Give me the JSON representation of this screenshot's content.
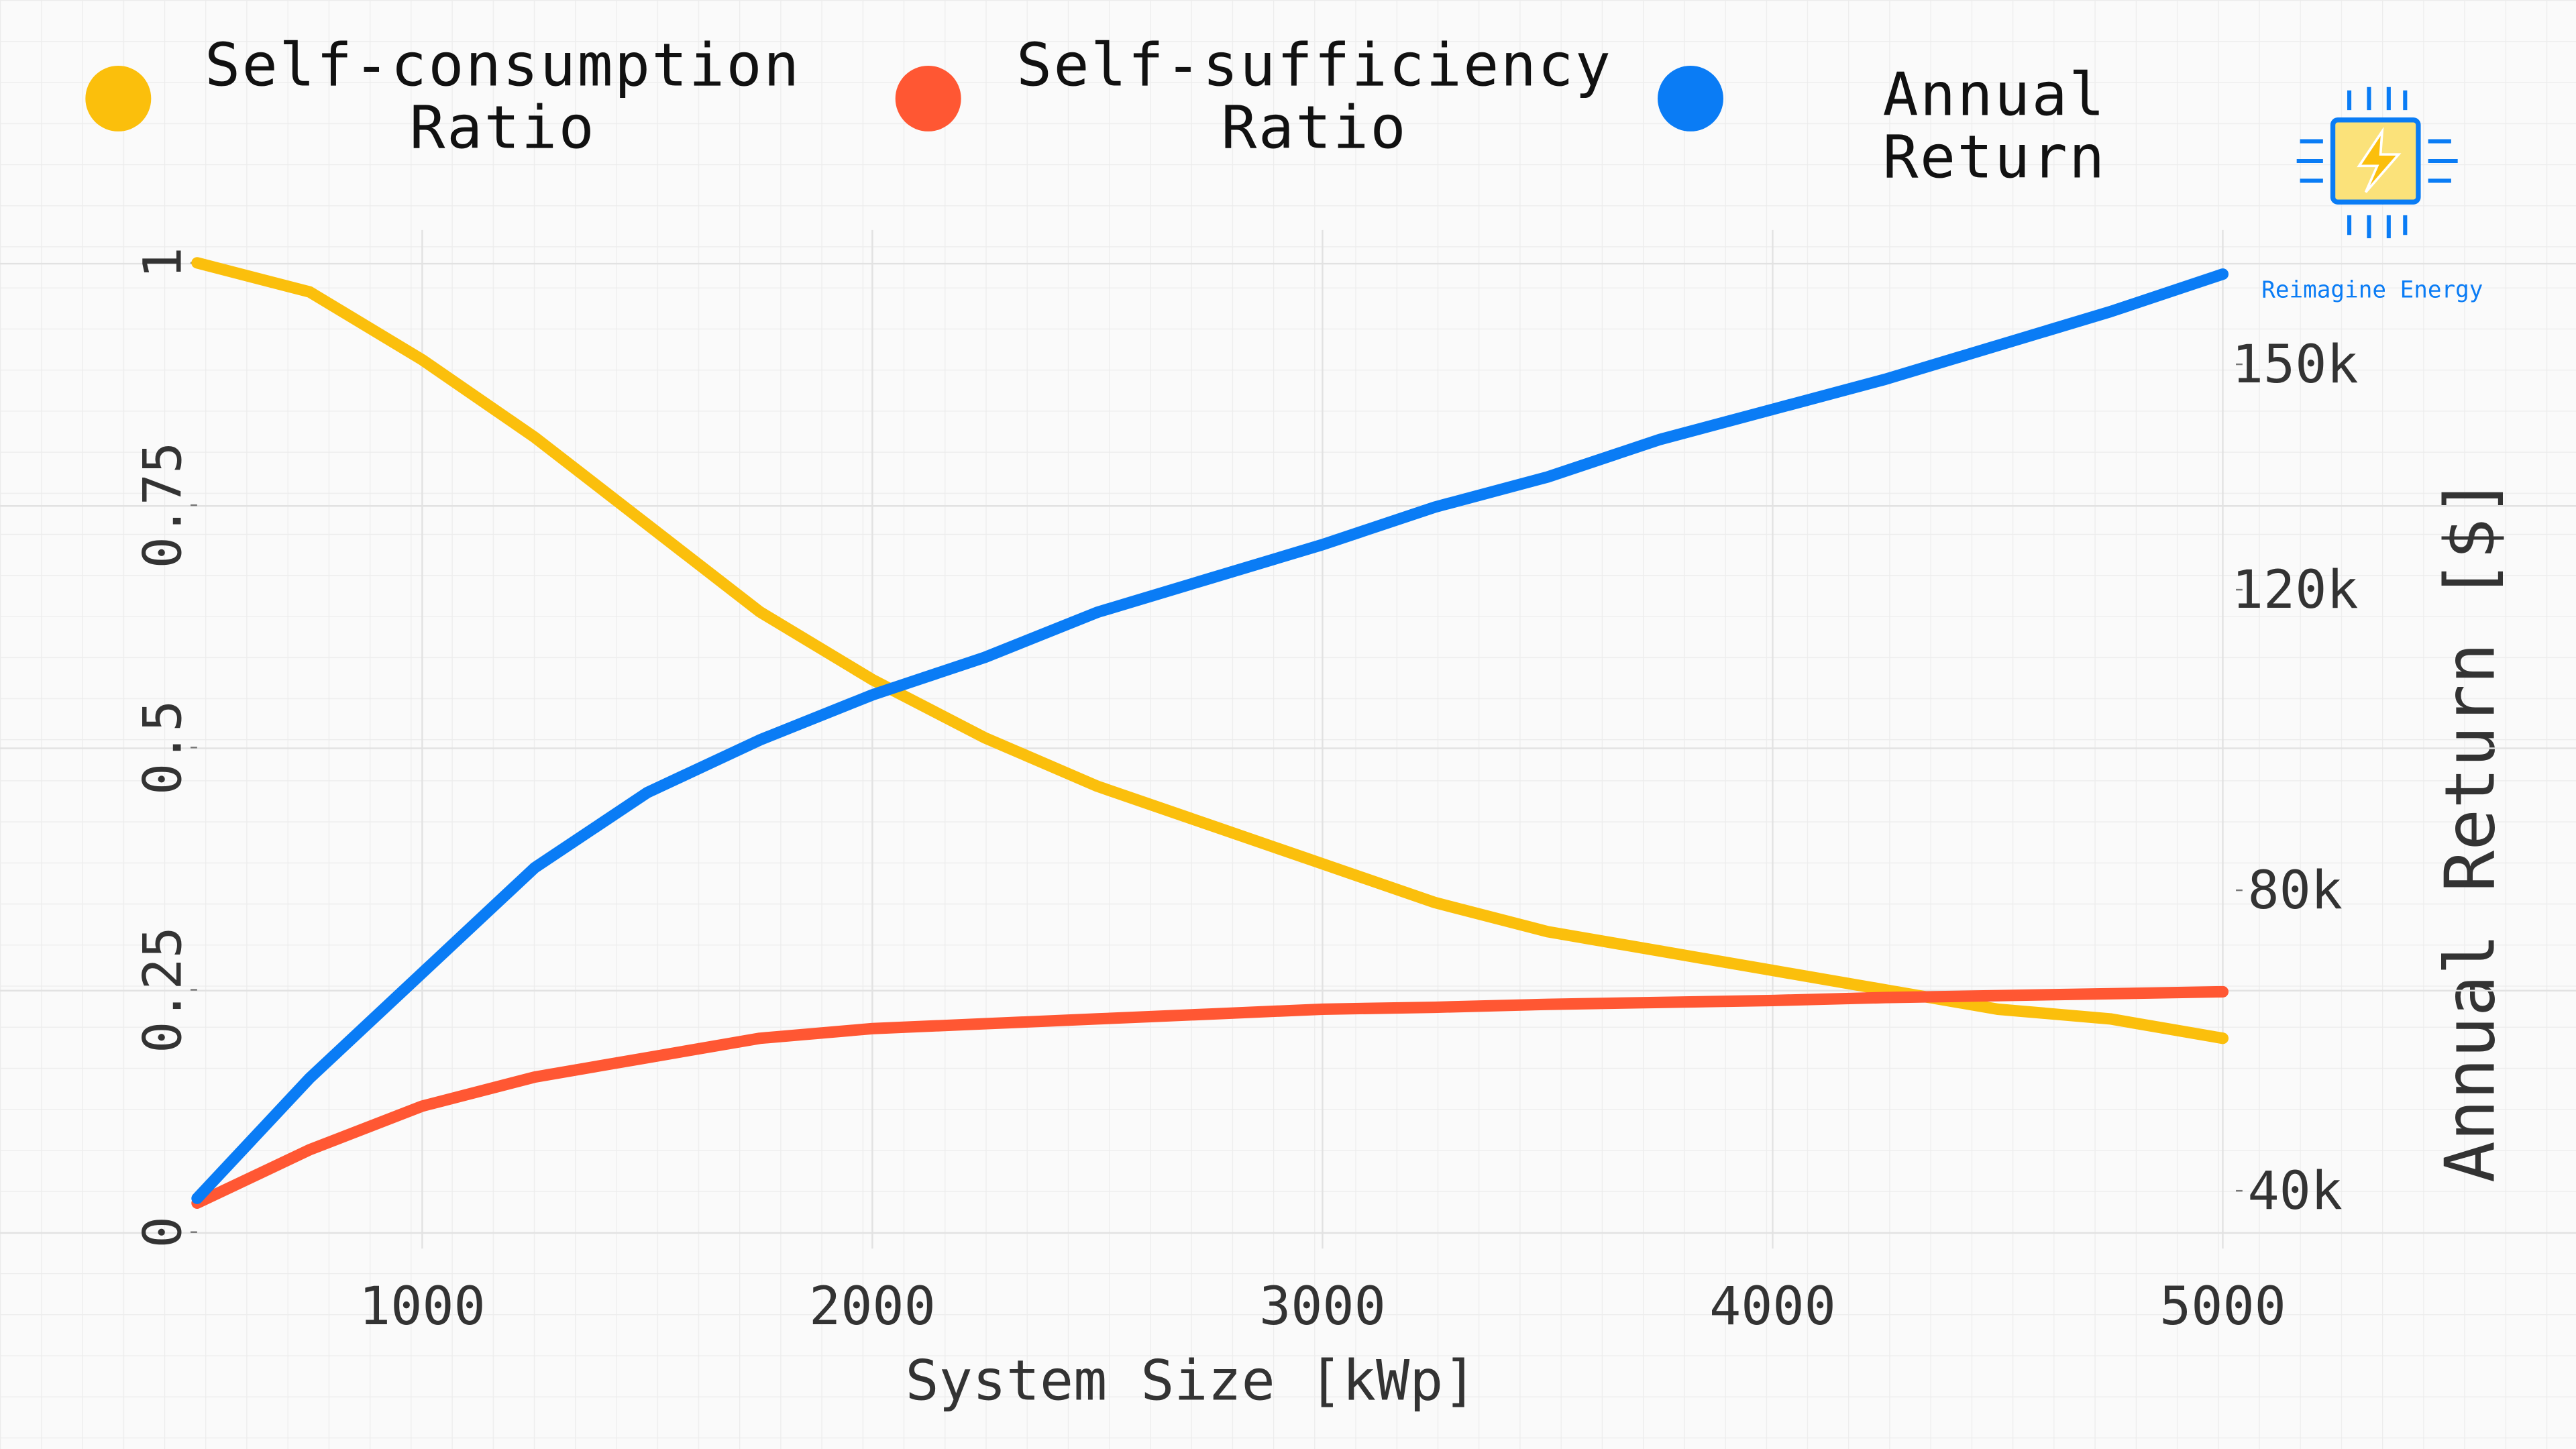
{
  "chart_data": {
    "type": "line",
    "xlabel": "System Size [kWp]",
    "y2label": "Annual Return [$]",
    "logo": "Reimagine Energy",
    "x": [
      500,
      750,
      1000,
      1250,
      1500,
      1750,
      2000,
      2250,
      2500,
      2750,
      3000,
      3250,
      3500,
      3750,
      4000,
      4250,
      4500,
      4750,
      5000
    ],
    "xlim": [
      500,
      5000
    ],
    "xticks": [
      1000,
      2000,
      3000,
      4000,
      5000
    ],
    "ylim": [
      0,
      1
    ],
    "yticks": [
      0,
      0.25,
      0.5,
      0.75,
      1
    ],
    "y2lim": [
      34500,
      163500
    ],
    "y2ticks": [
      {
        "value": 40000,
        "label": "40k"
      },
      {
        "value": 80000,
        "label": "80k"
      },
      {
        "value": 120000,
        "label": "120k"
      },
      {
        "value": 150000,
        "label": "150k"
      }
    ],
    "grid": true,
    "legend": "top",
    "series": [
      {
        "name": "Self-consumption Ratio",
        "color": "#fbbf0c",
        "values": [
          1.0,
          0.97,
          0.9,
          0.82,
          0.73,
          0.64,
          0.57,
          0.51,
          0.46,
          0.42,
          0.38,
          0.34,
          0.31,
          0.29,
          0.27,
          0.25,
          0.23,
          0.22,
          0.2
        ]
      },
      {
        "name": "Self-sufficiency Ratio",
        "color": "#ff5733",
        "values": [
          0.03,
          0.085,
          0.13,
          0.16,
          0.18,
          0.2,
          0.21,
          0.215,
          0.22,
          0.225,
          0.23,
          0.232,
          0.235,
          0.237,
          0.239,
          0.242,
          0.244,
          0.246,
          0.248
        ]
      },
      {
        "name": "Annual Return",
        "color": "#0a7cf5",
        "axis": "y2",
        "values": [
          39000,
          55000,
          69000,
          83000,
          93000,
          100000,
          106000,
          111000,
          117000,
          121500,
          126000,
          131000,
          135000,
          140000,
          144000,
          148000,
          152500,
          157000,
          162000
        ]
      }
    ]
  }
}
